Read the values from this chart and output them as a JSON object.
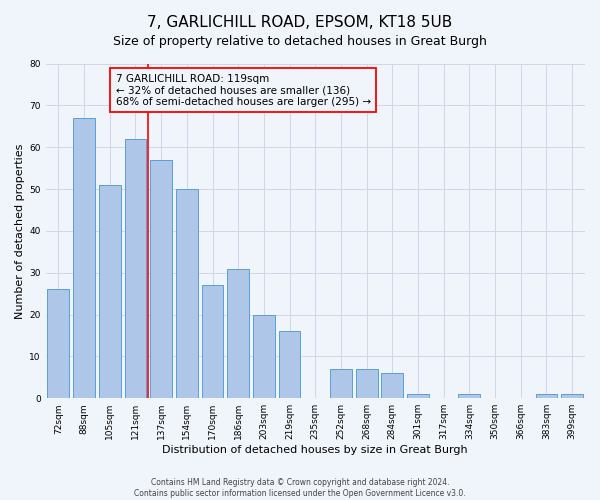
{
  "title": "7, GARLICHILL ROAD, EPSOM, KT18 5UB",
  "subtitle": "Size of property relative to detached houses in Great Burgh",
  "xlabel": "Distribution of detached houses by size in Great Burgh",
  "ylabel": "Number of detached properties",
  "footer_line1": "Contains HM Land Registry data © Crown copyright and database right 2024.",
  "footer_line2": "Contains public sector information licensed under the Open Government Licence v3.0.",
  "bin_labels": [
    "72sqm",
    "88sqm",
    "105sqm",
    "121sqm",
    "137sqm",
    "154sqm",
    "170sqm",
    "186sqm",
    "203sqm",
    "219sqm",
    "235sqm",
    "252sqm",
    "268sqm",
    "284sqm",
    "301sqm",
    "317sqm",
    "334sqm",
    "350sqm",
    "366sqm",
    "383sqm",
    "399sqm"
  ],
  "bar_values": [
    26,
    67,
    51,
    62,
    57,
    50,
    27,
    31,
    20,
    16,
    0,
    7,
    7,
    6,
    1,
    0,
    1,
    0,
    0,
    1,
    1
  ],
  "bar_color": "#aec6e8",
  "bar_edge_color": "#5a9fd4",
  "vline_color": "red",
  "vline_x": 3.5,
  "annotation_text": "7 GARLICHILL ROAD: 119sqm\n← 32% of detached houses are smaller (136)\n68% of semi-detached houses are larger (295) →",
  "annotation_box_color": "red",
  "ylim": [
    0,
    80
  ],
  "yticks": [
    0,
    10,
    20,
    30,
    40,
    50,
    60,
    70,
    80
  ],
  "grid_color": "#d0d8e8",
  "background_color": "#f0f4fb",
  "title_fontsize": 11,
  "subtitle_fontsize": 9,
  "axis_label_fontsize": 8,
  "tick_fontsize": 6.5,
  "annotation_fontsize": 7.5,
  "footer_fontsize": 5.5
}
